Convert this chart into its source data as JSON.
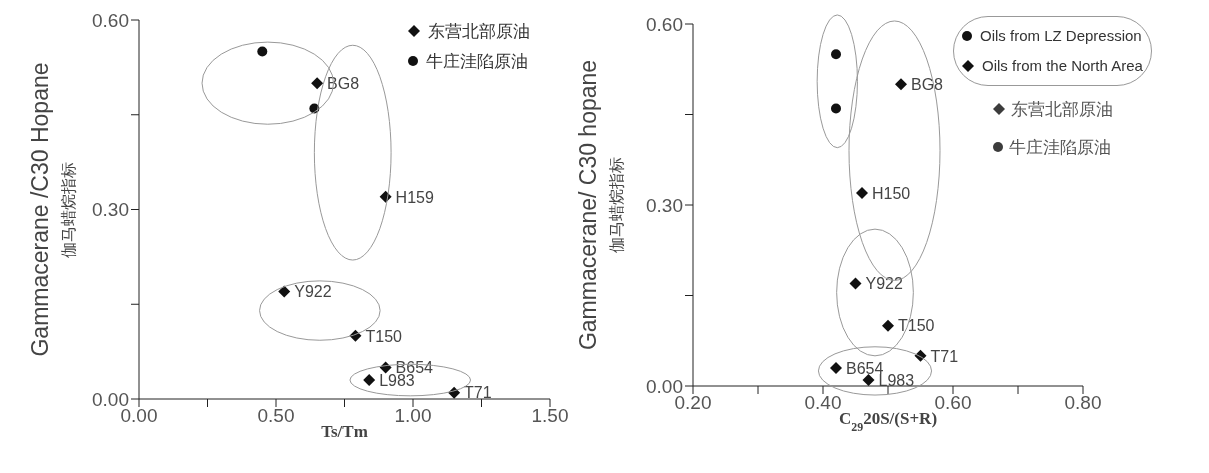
{
  "chart_data": [
    {
      "type": "scatter",
      "xlabel": "Ts/Tm",
      "ylabel": "Gammacerane /C30 Hopane\n伽马蜡烷指标",
      "xlim": [
        0,
        1.5
      ],
      "xticks": [
        {
          "value": 0,
          "label": "0.00"
        },
        {
          "value": 0.25,
          "label": null
        },
        {
          "value": 0.5,
          "label": "0.50"
        },
        {
          "value": 0.75,
          "label": null
        },
        {
          "value": 1,
          "label": "1.00"
        },
        {
          "value": 1.25,
          "label": null
        },
        {
          "value": 1.5,
          "label": "1.50"
        }
      ],
      "ylim": [
        0,
        0.6
      ],
      "yticks": [
        {
          "value": 0,
          "label": "0.00"
        },
        {
          "value": 0.15,
          "label": null
        },
        {
          "value": 0.3,
          "label": "0.30"
        },
        {
          "value": 0.45,
          "label": null
        },
        {
          "value": 0.6,
          "label": "0.60"
        }
      ],
      "grid": false,
      "legend": "top right",
      "series": [
        {
          "name": "东营北部原油",
          "color": "#111111",
          "marker": "diamond",
          "x": [
            0.65,
            0.9,
            0.53,
            0.79,
            0.9,
            0.84,
            1.15
          ],
          "values": [
            0.5,
            0.32,
            0.17,
            0.1,
            0.05,
            0.03,
            0.01
          ]
        },
        {
          "name": "牛庄洼陷原油",
          "color": "#111111",
          "marker": "circle",
          "x": [
            0.45,
            0.64
          ],
          "values": [
            0.55,
            0.46
          ]
        }
      ],
      "annotations": [
        {
          "text": "BG8",
          "x": 0.65,
          "y": 0.5
        },
        {
          "text": "H159",
          "x": 0.9,
          "y": 0.32
        },
        {
          "text": "Y922",
          "x": 0.53,
          "y": 0.17
        },
        {
          "text": "T150",
          "x": 0.79,
          "y": 0.1
        },
        {
          "text": "B654",
          "x": 0.9,
          "y": 0.05
        },
        {
          "text": "L983",
          "x": 0.84,
          "y": 0.03
        },
        {
          "text": "T71",
          "x": 1.15,
          "y": 0.01
        }
      ]
    },
    {
      "type": "scatter",
      "xlabel": "C$_{29}$20S/(S+R)",
      "ylabel": "Gammacerane/ C30 hopane\n伽马蜡烷指标",
      "xlim": [
        0.2,
        0.8
      ],
      "xticks": [
        {
          "value": 0.2,
          "label": "0.20"
        },
        {
          "value": 0.3,
          "label": null
        },
        {
          "value": 0.4,
          "label": "0.40"
        },
        {
          "value": 0.5,
          "label": null
        },
        {
          "value": 0.6,
          "label": "0.60"
        },
        {
          "value": 0.7,
          "label": null
        },
        {
          "value": 0.8,
          "label": "0.80"
        }
      ],
      "ylim": [
        0,
        0.6
      ],
      "yticks": [
        {
          "value": 0,
          "label": "0.00"
        },
        {
          "value": 0.15,
          "label": null
        },
        {
          "value": 0.3,
          "label": "0.30"
        },
        {
          "value": 0.45,
          "label": null
        },
        {
          "value": 0.6,
          "label": "0.60"
        }
      ],
      "grid": false,
      "legend": "top right",
      "series": [
        {
          "name": "Oils from LZ Depression",
          "color": "#111111",
          "marker": "circle",
          "x": [
            0.42,
            0.42
          ],
          "values": [
            0.55,
            0.46
          ]
        },
        {
          "name": "Oils from the North Area",
          "color": "#111111",
          "marker": "diamond",
          "x": [
            0.52,
            0.46,
            0.45,
            0.5,
            0.55,
            0.42,
            0.47
          ],
          "values": [
            0.5,
            0.32,
            0.17,
            0.1,
            0.05,
            0.03,
            0.01
          ]
        }
      ],
      "annotations": [
        "东营北部原油",
        "牛庄洼陷原油",
        {
          "text": "BG8",
          "x": 0.52,
          "y": 0.5
        },
        {
          "text": "H150",
          "x": 0.46,
          "y": 0.32
        },
        {
          "text": "Y922",
          "x": 0.45,
          "y": 0.17
        },
        {
          "text": "T150",
          "x": 0.5,
          "y": 0.1
        },
        {
          "text": "T71",
          "x": 0.55,
          "y": 0.05
        },
        {
          "text": "B654",
          "x": 0.42,
          "y": 0.03
        },
        {
          "text": "L983",
          "x": 0.47,
          "y": 0.01
        }
      ]
    }
  ]
}
